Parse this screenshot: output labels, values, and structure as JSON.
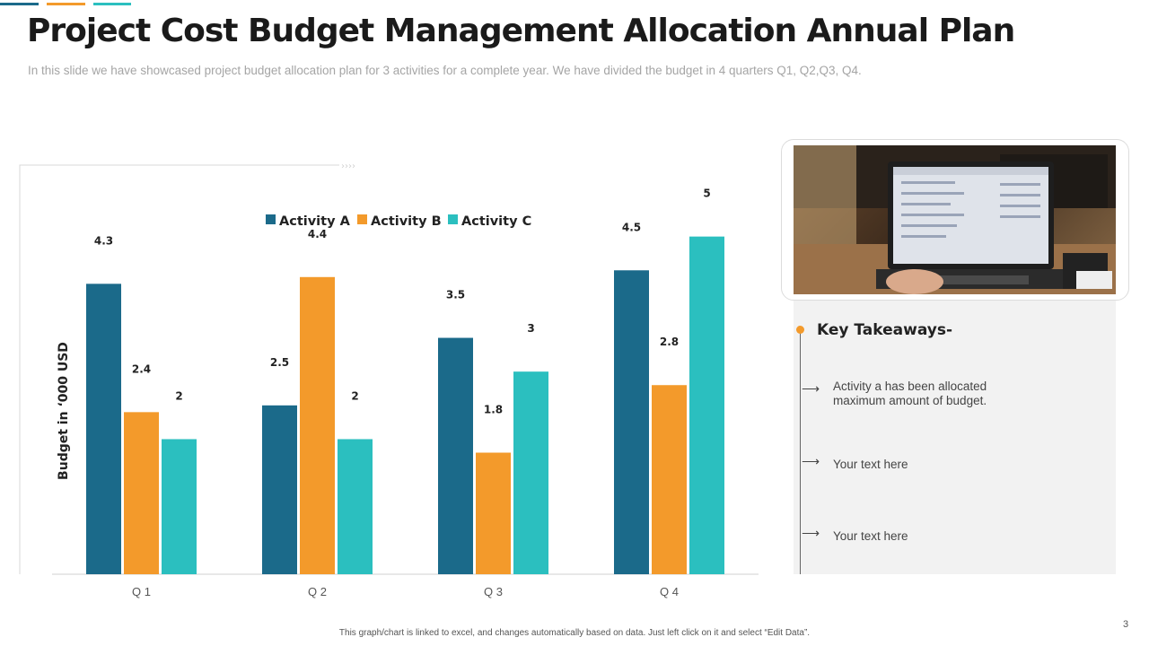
{
  "slide": {
    "title": "Project Cost Budget Management Allocation Annual Plan",
    "subtitle": "In this slide we have showcased project budget allocation plan for 3 activities for a complete year. We have divided the budget in 4 quarters Q1, Q2,Q3, Q4.",
    "footer": "This graph/chart is linked to excel, and changes automatically based on data. Just left click on it and select “Edit Data”.",
    "page_number": "3",
    "accent_colors": [
      "#1b6a8a",
      "#f39a2b",
      "#2bbfbf"
    ]
  },
  "chart_data": {
    "type": "bar",
    "categories": [
      "Q 1",
      "Q 2",
      "Q 3",
      "Q 4"
    ],
    "series": [
      {
        "name": "Activity A",
        "color": "#1b6a8a",
        "values": [
          4.3,
          2.5,
          3.5,
          4.5
        ]
      },
      {
        "name": "Activity B",
        "color": "#f39a2b",
        "values": [
          2.4,
          4.4,
          1.8,
          2.8
        ]
      },
      {
        "name": "Activity C",
        "color": "#2bbfbf",
        "values": [
          2,
          2,
          3,
          5
        ]
      }
    ],
    "title": "",
    "xlabel": "",
    "ylabel": "Budget in ‘000 USD",
    "ylim": [
      0,
      5.5
    ],
    "legend_position": "top",
    "grid": false
  },
  "takeaways": {
    "title": "Key Takeaways-",
    "items": [
      "Activity a has been allocated maximum  amount of budget.",
      "Your text here",
      "Your text here"
    ]
  }
}
